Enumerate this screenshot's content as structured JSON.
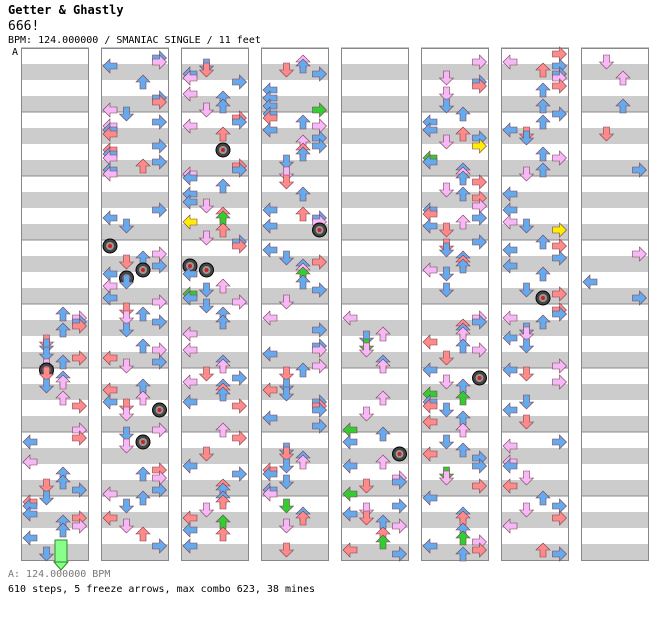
{
  "song": {
    "title": "Getter & Ghastly",
    "subtitle": "666!",
    "meta_line": "BPM: 124.000000 / SMANIAC SINGLE / 11 feet",
    "bpm_marker": "A"
  },
  "footer": {
    "bpm_line": "A: 124.000000 BPM",
    "stats_line": "610 steps, 5 freeze arrows, max combo 623, 38 mines"
  },
  "colors": {
    "stripe": "#cccccc",
    "border": "#888888",
    "quarter": "#ff8a8a",
    "eighth": "#f6b8f6",
    "sixteenth": "#66aaee",
    "green": "#33cc33",
    "yellow": "#ffee00",
    "freeze": "#88ff88"
  },
  "chart": {
    "columns": 8,
    "measures_per_column": 8,
    "lanes": [
      "left",
      "down",
      "up",
      "right"
    ]
  }
}
